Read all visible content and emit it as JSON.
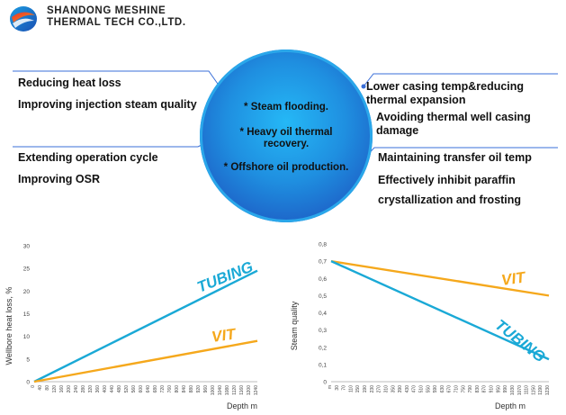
{
  "header": {
    "company_line1": "SHANDONG MESHINE",
    "company_line2": "THERMAL TECH CO.,LTD."
  },
  "center": {
    "items": [
      "* Steam flooding.",
      "* Heavy oil thermal recovery.",
      "* Offshore oil production."
    ]
  },
  "benefits": {
    "top_left": [
      "Reducing heat loss",
      "Improving injection steam quality"
    ],
    "bottom_left": [
      "Extending operation cycle",
      "Improving OSR"
    ],
    "top_right": [
      "Lower casing temp&reducing thermal expansion",
      "Avoiding thermal well casing damage"
    ],
    "bottom_right": [
      "Maintaining transfer oil temp",
      "Effectively inhibit paraffin crystallization and frosting"
    ]
  },
  "colors": {
    "tubing": "#1aa9d6",
    "vit": "#f5a81c",
    "circle_accent": "#2aa7ea",
    "leader_line": "#3a6fd8"
  },
  "chart_data": [
    {
      "type": "line",
      "ylabel": "Wellbore heat loss, %",
      "xlabel": "Depth m",
      "yticks": [
        0,
        5,
        10,
        15,
        20,
        25,
        30
      ],
      "ylim": [
        0,
        30
      ],
      "xticks": [
        "0",
        "40",
        "80",
        "120",
        "160",
        "200",
        "240",
        "280",
        "320",
        "360",
        "400",
        "440",
        "480",
        "520",
        "560",
        "600",
        "640",
        "680",
        "720",
        "760",
        "800",
        "840",
        "880",
        "920",
        "960",
        "1000",
        "1040",
        "1080",
        "1120",
        "1160",
        "1200",
        "1240"
      ],
      "series": [
        {
          "name": "TUBING",
          "x": [
            0,
            1240
          ],
          "y": [
            0,
            24.5
          ]
        },
        {
          "name": "VIT",
          "x": [
            0,
            1240
          ],
          "y": [
            0,
            9
          ]
        }
      ]
    },
    {
      "type": "line",
      "ylabel": "Steam quality",
      "xlabel": "Depth m",
      "yticks": [
        "0",
        "0,1",
        "0,2",
        "0,3",
        "0,4",
        "0,5",
        "0,6",
        "0,7",
        "0,8"
      ],
      "ylim": [
        0,
        0.8
      ],
      "xticks": [
        "m",
        "30",
        "70",
        "110",
        "150",
        "190",
        "230",
        "270",
        "310",
        "350",
        "390",
        "430",
        "470",
        "510",
        "550",
        "590",
        "630",
        "670",
        "710",
        "750",
        "790",
        "830",
        "870",
        "910",
        "950",
        "990",
        "1030",
        "1070",
        "1110",
        "1150",
        "1190",
        "1230"
      ],
      "series": [
        {
          "name": "VIT",
          "x": [
            0,
            1230
          ],
          "y": [
            0.7,
            0.5
          ]
        },
        {
          "name": "TUBING",
          "x": [
            0,
            1230
          ],
          "y": [
            0.7,
            0.13
          ]
        }
      ]
    }
  ]
}
